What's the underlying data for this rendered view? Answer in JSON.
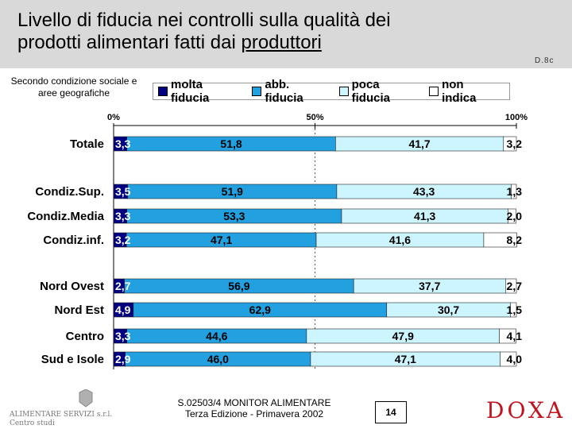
{
  "title_line1": "Livello di fiducia nei controlli sulla qualità dei",
  "title_line2_prefix": "prodotti alimentari fatti dai ",
  "title_line2_underlined": "produttori",
  "code": "D.8c",
  "subtitle": "Secondo condizione sociale e aree geografiche",
  "colors": {
    "molta": "#000080",
    "abb": "#22a0e0",
    "poca": "#ccf5ff",
    "non": "#ffffff",
    "header_bg": "#d9d9d9",
    "doxa": "#c0141e"
  },
  "footer": {
    "company": "ALIMENTARE SERVIZI s.r.l.",
    "dept": "Centro studi",
    "line1": "S.02503/4 MONITOR ALIMENTARE",
    "line2": "Terza Edizione - Primavera 2002",
    "page": "14",
    "brand": "DOXA"
  },
  "chart_data": {
    "type": "bar",
    "orientation": "horizontal",
    "stacked": true,
    "title": "Livello di fiducia nei controlli sulla qualità dei prodotti alimentari fatti dai produttori",
    "axis_ticks": [
      "0%",
      "50%",
      "100%"
    ],
    "xlim": [
      0,
      100
    ],
    "categories": [
      "Totale",
      "Condiz.Sup.",
      "Condiz.Media",
      "Condiz.inf.",
      "Nord Ovest",
      "Nord Est",
      "Centro",
      "Sud e Isole"
    ],
    "series": [
      {
        "name": "molta fiducia",
        "values": [
          3.3,
          3.5,
          3.3,
          3.2,
          2.7,
          4.9,
          3.3,
          2.9
        ],
        "labels": [
          "3,3",
          "3,5",
          "3,3",
          "3,2",
          "2,7",
          "4,9",
          "3,3",
          "2,9"
        ]
      },
      {
        "name": "abb. fiducia",
        "values": [
          51.8,
          51.9,
          53.3,
          47.1,
          56.9,
          62.9,
          44.6,
          46.0
        ],
        "labels": [
          "51,8",
          "51,9",
          "53,3",
          "47,1",
          "56,9",
          "62,9",
          "44,6",
          "46,0"
        ]
      },
      {
        "name": "poca fiducia",
        "values": [
          41.7,
          43.3,
          41.3,
          41.6,
          37.7,
          30.7,
          47.9,
          47.1
        ],
        "labels": [
          "41,7",
          "43,3",
          "41,3",
          "41,6",
          "37,7",
          "30,7",
          "47,9",
          "47,1"
        ]
      },
      {
        "name": "non indica",
        "values": [
          3.2,
          1.3,
          2.0,
          8.2,
          2.7,
          1.5,
          4.1,
          4.0
        ],
        "labels": [
          "3,2",
          "1,3",
          "2,0",
          "8,2",
          "2,7",
          "1,5",
          "4,1",
          "4,0"
        ]
      }
    ],
    "legend_position": "top"
  }
}
